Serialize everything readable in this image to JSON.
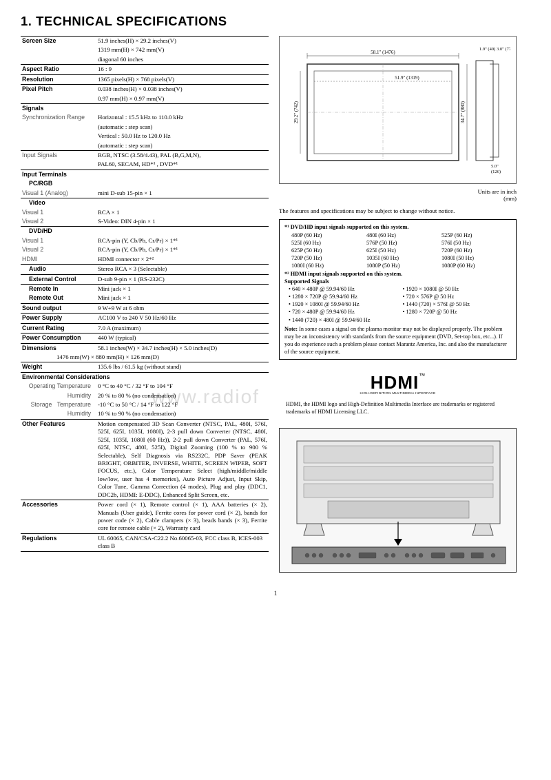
{
  "title": "1. TECHNICAL SPECIFICATIONS",
  "specs": {
    "screen_size": {
      "label": "Screen Size",
      "v1": "51.9 inches(H) × 29.2 inches(V)",
      "v2": "1319 mm(H) × 742 mm(V)",
      "v3": "diagonal 60 inches"
    },
    "aspect_ratio": {
      "label": "Aspect Ratio",
      "v": "16 : 9"
    },
    "resolution": {
      "label": "Resolution",
      "v": "1365 pixels(H) × 768 pixels(V)"
    },
    "pixel_pitch": {
      "label": "Pixel Pitch",
      "v1": "0.038 inches(H) × 0.038 inches(V)",
      "v2": "0.97 mm(H) × 0.97 mm(V)"
    },
    "signals": {
      "label": "Signals"
    },
    "sync_range": {
      "label": "Synchronization Range",
      "v1": "Horizontal : 15.5 kHz to 110.0 kHz",
      "v2": "(automatic : step scan)",
      "v3": "Vertical : 50.0 Hz to 120.0 Hz",
      "v4": "(automatic : step scan)"
    },
    "input_signals": {
      "label": "Input Signals",
      "v1": "RGB, NTSC (3.58/4.43), PAL (B,G,M,N),",
      "v2": "PAL60, SECAM, HD*¹ , DVD*¹"
    },
    "input_terminals": {
      "label": "Input Terminals"
    },
    "pcrgb": {
      "label": "PC/RGB"
    },
    "visual1_analog": {
      "label": "Visual 1 (Analog)",
      "v": "mini D-sub 15-pin × 1"
    },
    "video": {
      "label": "Video"
    },
    "video_v1": {
      "label": "Visual 1",
      "v": "RCA × 1"
    },
    "video_v2": {
      "label": "Visual 2",
      "v": "S-Video: DIN 4-pin × 1"
    },
    "dvdhd": {
      "label": "DVD/HD"
    },
    "dvd_v1": {
      "label": "Visual 1",
      "v": "RCA-pin (Y, Cb/Pb, Cr/Pr) × 1*¹"
    },
    "dvd_v2": {
      "label": "Visual 2",
      "v": "RCA-pin (Y, Cb/Pb, Cr/Pr) × 1*¹"
    },
    "hdmi": {
      "label": "HDMI",
      "v": "HDMI connector × 2*²"
    },
    "audio": {
      "label": "Audio",
      "v": "Stereo RCA × 3 (Selectable)"
    },
    "ext_ctrl": {
      "label": "External Control",
      "v": "D-sub 9-pin × 1 (RS-232C)"
    },
    "remote_in": {
      "label": "Remote In",
      "v": "Mini jack × 1"
    },
    "remote_out": {
      "label": "Remote Out",
      "v": "Mini jack × 1"
    },
    "sound_output": {
      "label": "Sound output",
      "v": "9 W+9 W at 6 ohm"
    },
    "power_supply": {
      "label": "Power Supply",
      "v": "AC100 V to 240 V 50 Hz/60 Hz"
    },
    "current_rating": {
      "label": "Current Rating",
      "v": "7.0 A (maximum)"
    },
    "power_consumption": {
      "label": "Power Consumption",
      "v": "440 W (typical)"
    },
    "dimensions": {
      "label": "Dimensions",
      "v1": "58.1 inches(W) × 34.7 inches(H) × 5.0 inches(D)",
      "v2": "1476 mm(W) × 880 mm(H) × 126 mm(D)"
    },
    "weight": {
      "label": "Weight",
      "v": "135.6 lbs / 61.5 kg  (without stand)"
    },
    "env": {
      "label": "Environmental Considerations"
    },
    "op_temp": {
      "label": "Operating Temperature",
      "v": "0 °C to 40 °C / 32 °F to 104 °F"
    },
    "op_hum": {
      "label": "Humidity",
      "v": "20 % to 80 % (no condensation)"
    },
    "st_temp": {
      "label": "Storage   Temperature",
      "v": "-10 °C to 50 °C / 14 °F to 122 °F"
    },
    "st_hum": {
      "label": "Humidity",
      "v": "10 % to 90 % (no condensation)"
    },
    "other": {
      "label": "Other Features",
      "v": "Motion compensated 3D Scan Converter (NTSC, PAL, 480I, 576I, 525I, 625I, 1035I, 1080I), 2-3 pull down Converter (NTSC, 480I, 525I, 1035I, 1080I (60 Hz)), 2-2 pull down Converter (PAL, 576I, 625I, NTSC, 480I, 525I), Digital Zooming (100 % to 900 % Selectable), Self Diagnosis via RS232C, PDP Saver (PEAK BRIGHT, ORBITER, INVERSE, WHITE, SCREEN WIPER, SOFT FOCUS, etc.), Color Temperature Select (high/middle/middle low/low, user has 4 memories), Auto Picture Adjust, Input Skip, Color Tune, Gamma Correction (4 modes), Plug and play (DDC1, DDC2b, HDMI: E-DDC), Enhanced Split Screen, etc."
    },
    "accessories": {
      "label": "Accessories",
      "v": "Power cord (× 1), Remote control (× 1), AAA batteries (× 2), Manuals (User guide), Ferrite cores for power cord (× 2), bands for power code (× 2), Cable clampers (× 3), beads bands (× 3), Ferrite core for remote cable (× 2), Warranty card"
    },
    "regulations": {
      "label": "Regulations",
      "v": "UL 60065, CAN/CSA-C22.2 No.60065-03, FCC class B, ICES-003 class B"
    }
  },
  "diagram": {
    "w_label": "58.1\" (1476)",
    "inner_w": "51.9\" (1319)",
    "h_label": "29.2\" (742)",
    "outer_h": "34.7\" (880)",
    "side1": "1.9\" (49)",
    "side2": "3.0\" (77)",
    "bottom1": "5.0\"",
    "bottom2": "(126)"
  },
  "unit_note": "Units are in inch\n(mm)",
  "features_note": "The features and specifications may be subject to change without notice.",
  "signals_box": {
    "hdr1": "*¹  DVD/HD input signals supported on this system.",
    "grid1": [
      "480P (60 Hz)",
      "480I (60 Hz)",
      "525P (60 Hz)",
      "525I (60 Hz)",
      "576P (50 Hz)",
      "576I (50 Hz)",
      "625P (50 Hz)",
      "625I (50 Hz)",
      "720P (60 Hz)",
      "720P (50 Hz)",
      "1035I (60 Hz)",
      "1080I (50 Hz)",
      "1080I (60 Hz)",
      "1080P (50 Hz)",
      "1080P (60 Hz)"
    ],
    "hdr2": "*²  HDMI input signals supported on this system.",
    "hdr3": "Supported Signals",
    "grid2": [
      "• 640 × 480P @ 59.94/60 Hz",
      "• 1920 × 1080I @ 50 Hz",
      "• 1280 × 720P @ 59.94/60 Hz",
      "• 720 × 576P @ 50 Hz",
      "• 1920 × 1080I @ 59.94/60 Hz",
      "• 1440 (720) × 576I @ 50 Hz",
      "• 720 × 480P @ 59.94/60 Hz",
      "• 1280 × 720P @ 50 Hz",
      "• 1440 (720) × 480I @ 59.94/60 Hz",
      ""
    ],
    "note_label": "Note:",
    "note": "In some cases a signal on the plasma monitor may not be displayed properly. The problem may be an inconsistency with standards from the source equipment (DVD, Set-top box, etc...). If you do experience such a problem please contact Marantz America, Inc. and also the manufacturer of the source equipment."
  },
  "hdmi": {
    "logo": "HDMI",
    "sub": "HIGH-DEFINITION MULTIMEDIA INTERFACE",
    "tm": "™",
    "note": "HDMI, the HDMI logo and High-Definition Multimedia Interface are trademarks or registered trademarks of HDMI Licensing LLC."
  },
  "page_num": "1",
  "watermark": "www.radiof",
  "colors": {
    "text": "#000000",
    "border": "#000000",
    "sub": "#555555",
    "diagram_bg": "#f8f8f8"
  }
}
